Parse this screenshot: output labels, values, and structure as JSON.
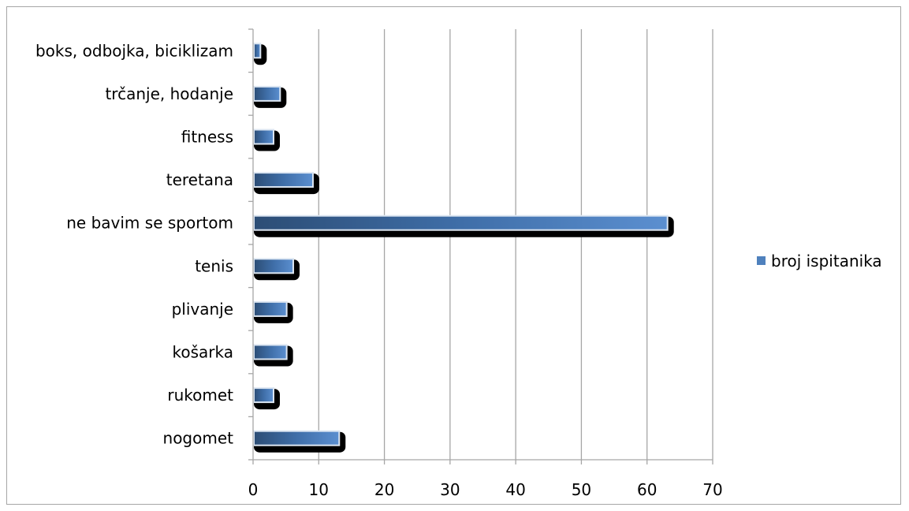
{
  "chart_data": {
    "type": "bar",
    "orientation": "horizontal",
    "categories": [
      "nogomet",
      "rukomet",
      "košarka",
      "plivanje",
      "tenis",
      "ne bavim se sportom",
      "teretana",
      "fitness",
      "trčanje, hodanje",
      "boks, odbojka, biciklizam"
    ],
    "series": [
      {
        "name": "broj ispitanika",
        "values": [
          13,
          3,
          5,
          5,
          6,
          63,
          9,
          3,
          4,
          1
        ],
        "color": "#4f81bd"
      }
    ],
    "xlim": [
      0,
      70
    ],
    "xticks": [
      0,
      10,
      20,
      30,
      40,
      50,
      60,
      70
    ],
    "grid": "vertical",
    "legend_position": "right",
    "title": "",
    "xlabel": "",
    "ylabel": ""
  }
}
